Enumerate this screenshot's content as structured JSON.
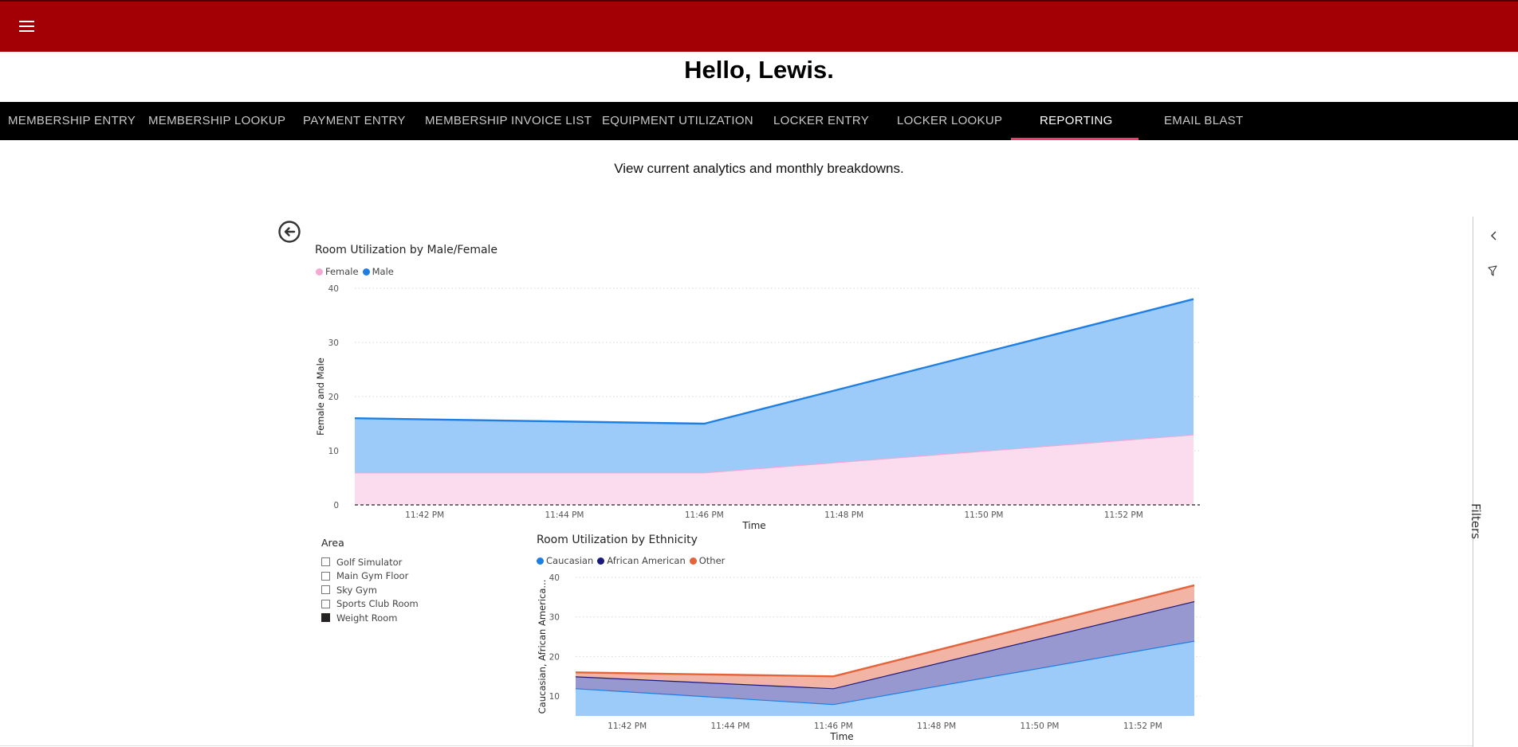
{
  "header": {
    "menu_icon": "hamburger-menu-icon",
    "greeting": "Hello, Lewis."
  },
  "nav": {
    "tabs": [
      {
        "label": "MEMBERSHIP ENTRY",
        "active": false
      },
      {
        "label": "MEMBERSHIP LOOKUP",
        "active": false
      },
      {
        "label": "PAYMENT ENTRY",
        "active": false
      },
      {
        "label": "MEMBERSHIP INVOICE LIST",
        "active": false
      },
      {
        "label": "EQUIPMENT UTILIZATION",
        "active": false
      },
      {
        "label": "LOCKER ENTRY",
        "active": false
      },
      {
        "label": "LOCKER LOOKUP",
        "active": false
      },
      {
        "label": "REPORTING",
        "active": true
      },
      {
        "label": "EMAIL BLAST",
        "active": false
      }
    ],
    "accent_color": "#e8406b"
  },
  "page": {
    "subtitle": "View current analytics and monthly breakdowns."
  },
  "report": {
    "back_icon": "back-arrow-circle-icon",
    "filters_label": "Filters",
    "area_slicer": {
      "title": "Area",
      "items": [
        {
          "label": "Golf Simulator",
          "checked": false
        },
        {
          "label": "Main Gym Floor",
          "checked": false
        },
        {
          "label": "Sky Gym",
          "checked": false
        },
        {
          "label": "Sports Club Room",
          "checked": false
        },
        {
          "label": "Weight Room",
          "checked": true
        }
      ]
    }
  },
  "chart_data": [
    {
      "type": "area",
      "stacked": true,
      "title": "Room Utilization by Male/Female",
      "xlabel": "Time",
      "ylabel": "Female and Male",
      "ylim": [
        0,
        40
      ],
      "yticks": [
        "0",
        "10",
        "20",
        "30",
        "40"
      ],
      "x_tick_labels": [
        "11:42 PM",
        "11:44 PM",
        "11:46 PM",
        "11:48 PM",
        "11:50 PM",
        "11:52 PM"
      ],
      "x": [
        "11:41 PM",
        "11:46 PM",
        "11:53 PM"
      ],
      "series": [
        {
          "name": "Female",
          "color": "#f4a8d4",
          "fill": "#fbdcef",
          "values": [
            6,
            6,
            13
          ]
        },
        {
          "name": "Male",
          "color": "#1e7ee4",
          "fill": "#9ccbfa",
          "values": [
            10,
            9,
            25
          ]
        }
      ],
      "legend": "top-left",
      "grid": true
    },
    {
      "type": "area",
      "stacked": true,
      "title": "Room Utilization by Ethnicity",
      "xlabel": "Time",
      "ylabel": "Caucasian, African America...",
      "ylim": [
        5,
        40
      ],
      "yticks": [
        "10",
        "20",
        "30",
        "40"
      ],
      "x_tick_labels": [
        "11:42 PM",
        "11:44 PM",
        "11:46 PM",
        "11:48 PM",
        "11:50 PM",
        "11:52 PM"
      ],
      "x": [
        "11:41 PM",
        "11:46 PM",
        "11:53 PM"
      ],
      "series": [
        {
          "name": "Caucasian",
          "color": "#1e7ee4",
          "fill": "#9ccbfa",
          "values": [
            12,
            8,
            24
          ]
        },
        {
          "name": "African American",
          "color": "#1a1a7e",
          "fill": "#9898d0",
          "values": [
            3,
            4,
            10
          ]
        },
        {
          "name": "Other",
          "color": "#e4633a",
          "fill": "#f2b4a4",
          "values": [
            1,
            3,
            4
          ]
        }
      ],
      "legend": "top-left",
      "grid": true
    }
  ]
}
